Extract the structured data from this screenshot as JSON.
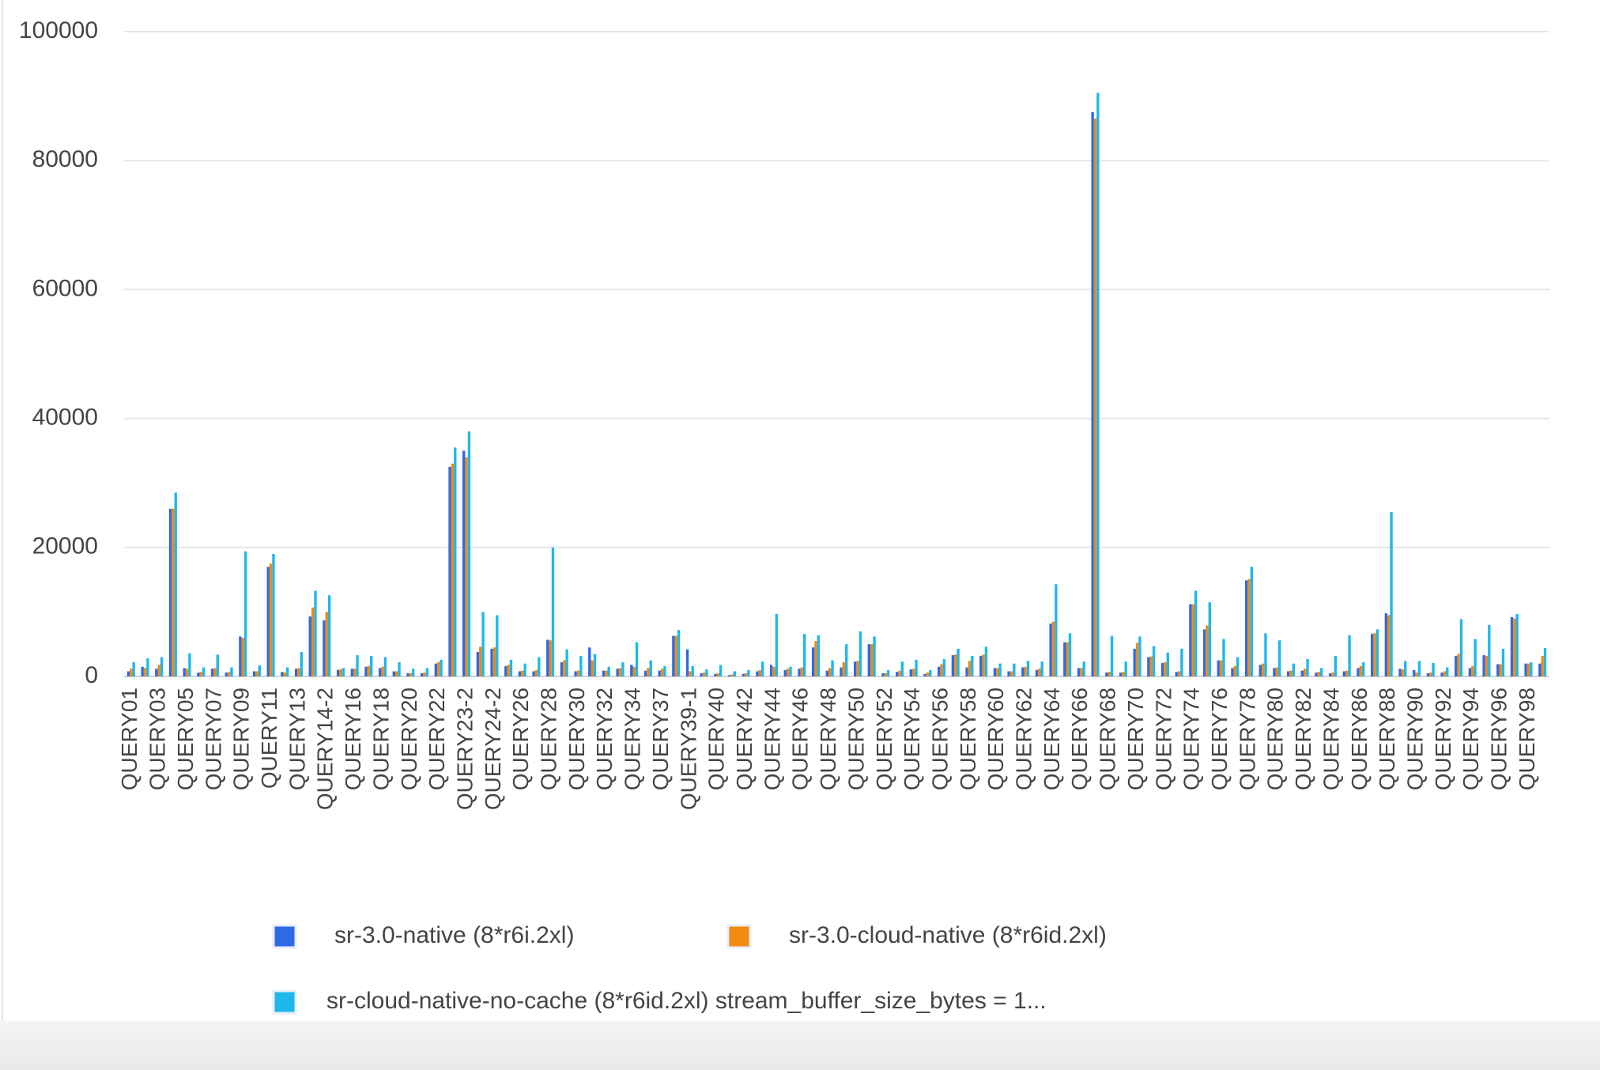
{
  "chart_data": {
    "type": "bar",
    "categories": [
      "QUERY01",
      null,
      "QUERY03",
      null,
      "QUERY05",
      null,
      "QUERY07",
      null,
      "QUERY09",
      null,
      "QUERY11",
      null,
      "QUERY13",
      null,
      "QUERY14-2",
      null,
      "QUERY16",
      null,
      "QUERY18",
      null,
      "QUERY20",
      null,
      "QUERY22",
      null,
      "QUERY23-2",
      null,
      "QUERY24-2",
      null,
      "QUERY26",
      null,
      "QUERY28",
      null,
      "QUERY30",
      null,
      "QUERY32",
      null,
      "QUERY34",
      null,
      "QUERY37",
      null,
      "QUERY39-1",
      null,
      "QUERY40",
      null,
      "QUERY42",
      null,
      "QUERY44",
      null,
      "QUERY46",
      null,
      "QUERY48",
      null,
      "QUERY50",
      null,
      "QUERY52",
      null,
      "QUERY54",
      null,
      "QUERY56",
      null,
      "QUERY58",
      null,
      "QUERY60",
      null,
      "QUERY62",
      null,
      "QUERY64",
      null,
      "QUERY66",
      null,
      "QUERY68",
      null,
      "QUERY70",
      null,
      "QUERY72",
      null,
      "QUERY74",
      null,
      "QUERY76",
      null,
      "QUERY78",
      null,
      "QUERY80",
      null,
      "QUERY82",
      null,
      "QUERY84",
      null,
      "QUERY86",
      null,
      "QUERY88",
      null,
      "QUERY90",
      null,
      "QUERY92",
      null,
      "QUERY94",
      null,
      "QUERY96",
      null,
      "QUERY98",
      null
    ],
    "series": [
      {
        "name": "sr-3.0-native (8*r6i.2xl)",
        "color": "#2f6ae6",
        "values": [
          800,
          1500,
          1200,
          26000,
          1300,
          600,
          1200,
          600,
          6200,
          800,
          17000,
          700,
          1200,
          9300,
          8700,
          1000,
          1200,
          1500,
          1300,
          800,
          500,
          500,
          2000,
          32500,
          35000,
          3800,
          4300,
          1600,
          800,
          800,
          5700,
          2200,
          800,
          4500,
          900,
          1200,
          1800,
          900,
          900,
          6300,
          4200,
          500,
          400,
          200,
          400,
          800,
          1800,
          1000,
          1200,
          4500,
          900,
          1400,
          2300,
          5000,
          500,
          700,
          1100,
          400,
          1500,
          3300,
          1400,
          3200,
          1300,
          800,
          1400,
          1000,
          8200,
          5300,
          1300,
          87500,
          600,
          600,
          4300,
          3000,
          2100,
          700,
          11200,
          7300,
          2500,
          1300,
          14900,
          1800,
          1300,
          800,
          900,
          600,
          500,
          800,
          1300,
          6600,
          9800,
          1200,
          1000,
          500,
          600,
          3200,
          1300,
          3300,
          1900,
          9200,
          2000,
          2000
        ]
      },
      {
        "name": "sr-3.0-cloud-native (8*r6id.2xl)",
        "color": "#f08a12",
        "values": [
          1200,
          1300,
          1800,
          26000,
          1200,
          700,
          1300,
          700,
          6000,
          800,
          17500,
          600,
          1300,
          10700,
          10000,
          1100,
          1200,
          1600,
          1500,
          800,
          500,
          600,
          2200,
          33000,
          34000,
          4600,
          4500,
          1800,
          900,
          1000,
          5600,
          2500,
          900,
          2500,
          900,
          1300,
          1500,
          1300,
          1200,
          6300,
          800,
          600,
          500,
          300,
          500,
          1000,
          1500,
          1200,
          1400,
          5500,
          1300,
          2200,
          2400,
          5000,
          500,
          900,
          1200,
          600,
          1900,
          3400,
          2400,
          3400,
          1300,
          800,
          1500,
          1200,
          8500,
          5300,
          1300,
          86500,
          700,
          700,
          5200,
          3100,
          2200,
          800,
          11200,
          7900,
          2500,
          1600,
          15100,
          2000,
          1400,
          900,
          1200,
          700,
          600,
          900,
          1600,
          6700,
          9500,
          1100,
          600,
          600,
          800,
          3500,
          1600,
          3200,
          1900,
          9000,
          2000,
          3200
        ]
      },
      {
        "name": "sr-cloud-native-no-cache (8*r6id.2xl) stream_buffer_size_bytes = 1...",
        "color": "#1db8ec",
        "values": [
          2200,
          2800,
          3000,
          28500,
          3600,
          1400,
          3400,
          1400,
          19400,
          1700,
          19000,
          1400,
          3800,
          13300,
          12600,
          1300,
          3300,
          3200,
          3000,
          2200,
          1200,
          1300,
          2600,
          35500,
          38000,
          10000,
          9500,
          2600,
          2000,
          3000,
          20000,
          4200,
          3200,
          3500,
          1500,
          2200,
          5300,
          2500,
          1600,
          7200,
          1600,
          1100,
          1800,
          800,
          1000,
          2300,
          9700,
          1500,
          6600,
          6400,
          2500,
          5000,
          7000,
          6200,
          1000,
          2300,
          2600,
          1000,
          2700,
          4300,
          3200,
          4600,
          2000,
          2000,
          2400,
          2300,
          14300,
          6700,
          2300,
          90500,
          6300,
          2300,
          6200,
          4700,
          3700,
          4300,
          13300,
          11500,
          5800,
          3000,
          17000,
          6700,
          5600,
          2000,
          2700,
          1300,
          3200,
          6400,
          2200,
          7300,
          25500,
          2400,
          2400,
          2100,
          1400,
          8900,
          5800,
          8000,
          4300,
          9700,
          2200,
          4400
        ]
      }
    ],
    "ylim": [
      0,
      100000
    ],
    "yticks": [
      0,
      20000,
      40000,
      60000,
      80000,
      100000
    ],
    "grid": true
  }
}
